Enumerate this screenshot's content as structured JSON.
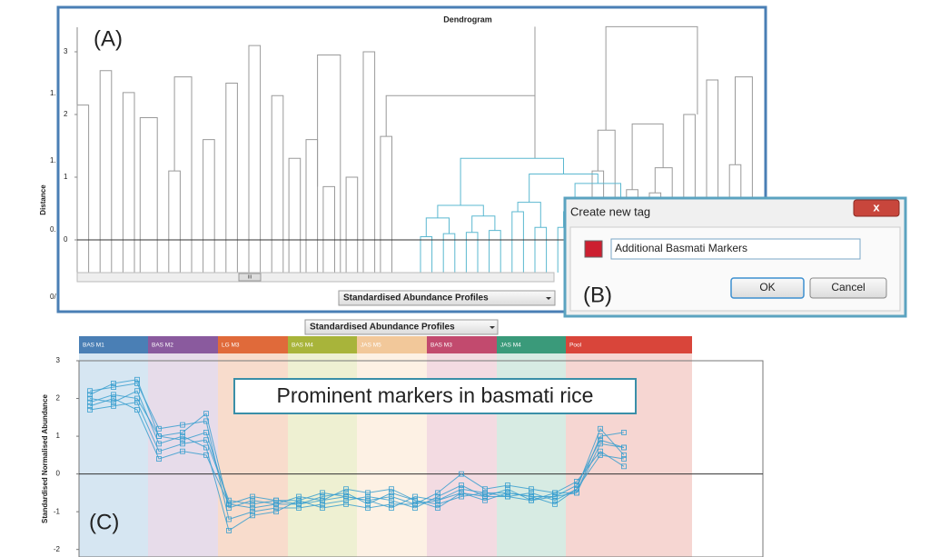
{
  "dendrogram": {
    "label": "(A)",
    "title": "Dendrogram",
    "ylabel": "Distance",
    "yticks": [
      0,
      1,
      2,
      3
    ],
    "clipped_labels": [
      "1.",
      "1.",
      "0.",
      "0/"
    ],
    "scroll_label": "III",
    "dropdown": "Standardised Abundance Profiles",
    "grey_color": "#9a9a9a",
    "cyan_color": "#5bb8d0",
    "grey_links": [
      [
        0,
        1,
        -0.55,
        -0.55,
        2.15
      ],
      [
        2,
        3,
        -0.55,
        -0.55,
        2.7
      ],
      [
        4,
        5,
        -0.55,
        -0.55,
        2.35
      ],
      [
        5.5,
        7,
        -0.55,
        -0.55,
        1.95
      ],
      [
        8,
        9,
        -0.55,
        -0.55,
        1.1
      ],
      [
        8.5,
        10,
        1.1,
        -0.55,
        2.6
      ],
      [
        11,
        12,
        -0.55,
        -0.55,
        1.6
      ],
      [
        13,
        14,
        -0.55,
        -0.55,
        2.5
      ],
      [
        15,
        16,
        -0.55,
        -0.55,
        3.1
      ],
      [
        17,
        18,
        -0.55,
        -0.55,
        2.3
      ],
      [
        18.5,
        19.5,
        -0.55,
        -0.55,
        1.3
      ],
      [
        20,
        21,
        -0.55,
        -0.55,
        1.6
      ],
      [
        21.5,
        22.5,
        -0.55,
        -0.55,
        0.85
      ],
      [
        21,
        23,
        0.85,
        -0.55,
        2.95
      ],
      [
        23.5,
        24.5,
        -0.55,
        -0.55,
        1.0
      ],
      [
        25,
        26,
        -0.55,
        -0.55,
        3.0
      ],
      [
        26.5,
        27.5,
        -0.55,
        -0.55,
        1.65
      ],
      [
        27,
        40,
        1.65,
        1.3,
        2.3
      ],
      [
        40,
        40,
        2.3,
        2.3,
        3.4
      ],
      [
        43,
        44,
        -0.55,
        -0.55,
        0.4
      ],
      [
        45,
        46,
        -0.55,
        -0.55,
        1.1
      ],
      [
        45.5,
        47,
        1.1,
        -0.55,
        1.75
      ],
      [
        48,
        49,
        -0.55,
        -0.55,
        0.8
      ],
      [
        50,
        51,
        -0.55,
        -0.55,
        0.75
      ],
      [
        50.5,
        52,
        0.75,
        -0.55,
        1.15
      ],
      [
        48.5,
        51.2,
        0.8,
        1.15,
        1.85
      ],
      [
        53,
        54,
        -0.55,
        -0.55,
        2.0
      ],
      [
        55,
        56,
        -0.55,
        -0.55,
        2.55
      ],
      [
        57,
        58,
        -0.55,
        -0.55,
        1.2
      ],
      [
        57.5,
        59,
        1.2,
        -0.55,
        2.6
      ],
      [
        46.2,
        54.2,
        1.75,
        2.0,
        3.4
      ]
    ],
    "cyan_links": [
      [
        30,
        31,
        -0.55,
        -0.55,
        0.05
      ],
      [
        32,
        33,
        -0.55,
        -0.55,
        0.1
      ],
      [
        34,
        35,
        -0.55,
        -0.55,
        0.12
      ],
      [
        36,
        37,
        -0.55,
        -0.55,
        0.15
      ],
      [
        38,
        39,
        -0.55,
        -0.55,
        0.45
      ],
      [
        40,
        41,
        -0.55,
        -0.55,
        0.2
      ],
      [
        42,
        43,
        -0.55,
        -0.55,
        0.2
      ],
      [
        44,
        45,
        -0.55,
        -0.55,
        0.3
      ],
      [
        46,
        47,
        -0.55,
        -0.55,
        0.3
      ],
      [
        48,
        49,
        -0.55,
        -0.55,
        0.4
      ],
      [
        30.5,
        32.5,
        0.05,
        0.1,
        0.35
      ],
      [
        34.5,
        36.5,
        0.12,
        0.15,
        0.38
      ],
      [
        31.5,
        35.5,
        0.35,
        0.38,
        0.55
      ],
      [
        38.5,
        40.5,
        0.45,
        0.2,
        0.6
      ],
      [
        42.5,
        44.5,
        0.2,
        0.3,
        0.45
      ],
      [
        46.5,
        48.5,
        0.3,
        0.4,
        0.65
      ],
      [
        43.5,
        47.5,
        0.45,
        0.65,
        0.9
      ],
      [
        39.5,
        45.5,
        0.6,
        0.9,
        1.05
      ],
      [
        33.5,
        42.5,
        0.55,
        1.05,
        1.3
      ]
    ]
  },
  "dialog": {
    "label": "(B)",
    "title": "Create new tag",
    "close": "x",
    "swatch_color": "#cc1f30",
    "input": "Additional Basmati Markers",
    "ok": "OK",
    "cancel": "Cancel"
  },
  "profiles": {
    "label": "(C)",
    "dropdown": "Standardised Abundance Profiles",
    "ylabel": "Standardised Normalised Abundance",
    "annotation": "Prominent markers in basmati rice",
    "yticks": [
      3,
      2,
      1,
      0,
      -1,
      -2
    ],
    "ylim": [
      -2.2,
      3
    ],
    "line_color": "#3a9fcf",
    "groups": [
      {
        "name": "BAS M1",
        "color": "#4a7fb5",
        "bg": "#d6e6f2"
      },
      {
        "name": "BAS M2",
        "color": "#8a5a9e",
        "bg": "#e7dcea"
      },
      {
        "name": "LG M3",
        "color": "#e06a3a",
        "bg": "#f8dccc"
      },
      {
        "name": "BAS M4",
        "color": "#a8b43a",
        "bg": "#eef0d2"
      },
      {
        "name": "JAS M5",
        "color": "#f2c89a",
        "bg": "#fdf1e4"
      },
      {
        "name": "BAS M3",
        "color": "#c24a6e",
        "bg": "#f3dbe2"
      },
      {
        "name": "JAS M4",
        "color": "#3a9a7a",
        "bg": "#d7ebe3"
      },
      {
        "name": "Pool",
        "color": "#d9453a",
        "bg": "#f6d6d2"
      }
    ],
    "series": [
      [
        1.9,
        2.1,
        2.0,
        1.0,
        0.9,
        1.1,
        -0.8,
        -0.9,
        -0.8,
        -0.8,
        -0.7,
        -0.6,
        -0.7,
        -0.6,
        -0.8,
        -0.7,
        -0.4,
        -0.5,
        -0.5,
        -0.6,
        -0.6,
        -0.3,
        0.9,
        0.7
      ],
      [
        2.2,
        2.3,
        2.4,
        1.2,
        1.3,
        1.4,
        -1.2,
        -1.0,
        -0.9,
        -0.9,
        -0.8,
        -0.7,
        -0.6,
        -0.7,
        -0.9,
        -0.6,
        -0.3,
        -0.6,
        -0.4,
        -0.7,
        -0.5,
        -0.5,
        1.0,
        1.1
      ],
      [
        1.7,
        1.8,
        1.9,
        0.6,
        0.8,
        0.9,
        -0.7,
        -0.8,
        -0.7,
        -0.8,
        -0.6,
        -0.5,
        -0.8,
        -0.5,
        -0.7,
        -0.8,
        -0.6,
        -0.5,
        -0.6,
        -0.5,
        -0.7,
        -0.4,
        0.5,
        0.4
      ],
      [
        2.0,
        1.9,
        2.2,
        0.8,
        1.0,
        0.7,
        -1.5,
        -1.1,
        -1.0,
        -0.7,
        -0.9,
        -0.8,
        -0.9,
        -0.8,
        -0.8,
        -0.5,
        0.0,
        -0.4,
        -0.3,
        -0.4,
        -0.5,
        -0.2,
        0.6,
        0.2
      ],
      [
        2.1,
        2.4,
        2.5,
        1.0,
        1.1,
        1.6,
        -0.9,
        -0.7,
        -0.8,
        -0.6,
        -0.7,
        -0.4,
        -0.5,
        -0.4,
        -0.7,
        -0.9,
        -0.5,
        -0.6,
        -0.6,
        -0.7,
        -0.6,
        -0.5,
        0.8,
        0.7
      ],
      [
        1.8,
        2.0,
        1.7,
        0.4,
        0.6,
        0.5,
        -0.8,
        -0.6,
        -0.7,
        -0.7,
        -0.5,
        -0.6,
        -0.7,
        -0.9,
        -0.6,
        -0.7,
        -0.5,
        -0.7,
        -0.5,
        -0.6,
        -0.8,
        -0.4,
        1.2,
        0.5
      ]
    ]
  }
}
